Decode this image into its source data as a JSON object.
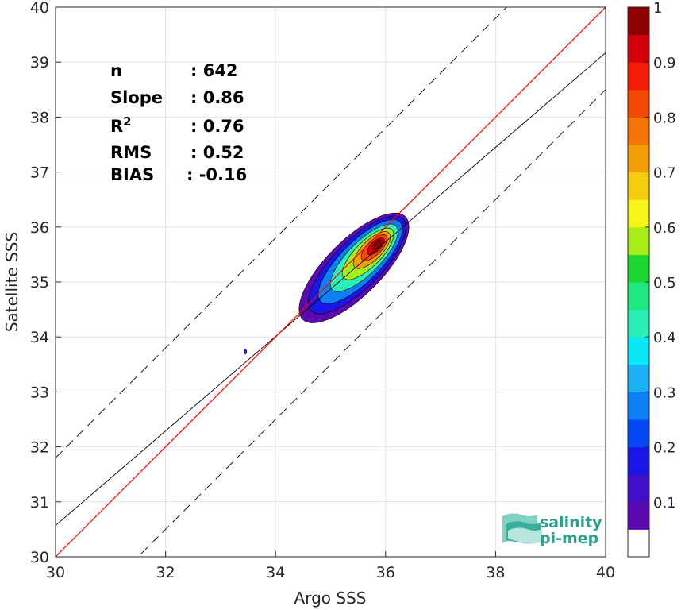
{
  "chart_data": {
    "type": "contour-scatter",
    "xlabel": "Argo SSS",
    "ylabel": "Satellite SSS",
    "xlim": [
      30,
      40
    ],
    "ylim": [
      30,
      40
    ],
    "xticks": [
      30,
      32,
      34,
      36,
      38,
      40
    ],
    "yticks": [
      30,
      31,
      32,
      33,
      34,
      35,
      36,
      37,
      38,
      39,
      40
    ],
    "grid": true,
    "stats": [
      {
        "label": "n",
        "value": ": 642"
      },
      {
        "label": "Slope",
        "value": ": 0.86"
      },
      {
        "label": "R",
        "sup": "2",
        "value": ": 0.76"
      },
      {
        "label": "RMS",
        "value": ": 0.52"
      },
      {
        "label": "BIAS",
        "value": ": -0.16"
      }
    ],
    "lines": {
      "one_to_one": {
        "color": "#ff0000",
        "x": [
          30,
          40
        ],
        "y": [
          30,
          40
        ]
      },
      "fit": {
        "color": "#000000",
        "x": [
          30,
          40
        ],
        "y": [
          30.57,
          39.17
        ]
      },
      "upper_rms": {
        "color": "#000000",
        "dash": true,
        "x": [
          30,
          40
        ],
        "y": [
          31.8,
          41.8
        ]
      },
      "lower_rms": {
        "color": "#000000",
        "dash": true,
        "x": [
          30,
          40
        ],
        "y": [
          28.5,
          38.5
        ]
      }
    },
    "density_peak": {
      "x": 35.85,
      "y": 35.68
    },
    "outlier_point": {
      "x": 33.45,
      "y": 33.73
    },
    "colorbar": {
      "ticks": [
        "0.1",
        "0.2",
        "0.3",
        "0.4",
        "0.5",
        "0.6",
        "0.7",
        "0.8",
        "0.9",
        "1"
      ],
      "range": [
        0,
        1
      ],
      "colors": [
        "#ffffff",
        "#5b0ab0",
        "#3f10c8",
        "#1a16e8",
        "#0548f5",
        "#0c7ff5",
        "#1bb2f5",
        "#08e9f5",
        "#2af0b8",
        "#1fe880",
        "#1ed831",
        "#a8ed1a",
        "#f5f51c",
        "#f5cd0e",
        "#f59f08",
        "#f57606",
        "#f54905",
        "#f51b05",
        "#d2000a",
        "#8e0000"
      ]
    }
  },
  "logo": {
    "line1": "salinity",
    "line2": "pi-mep"
  }
}
